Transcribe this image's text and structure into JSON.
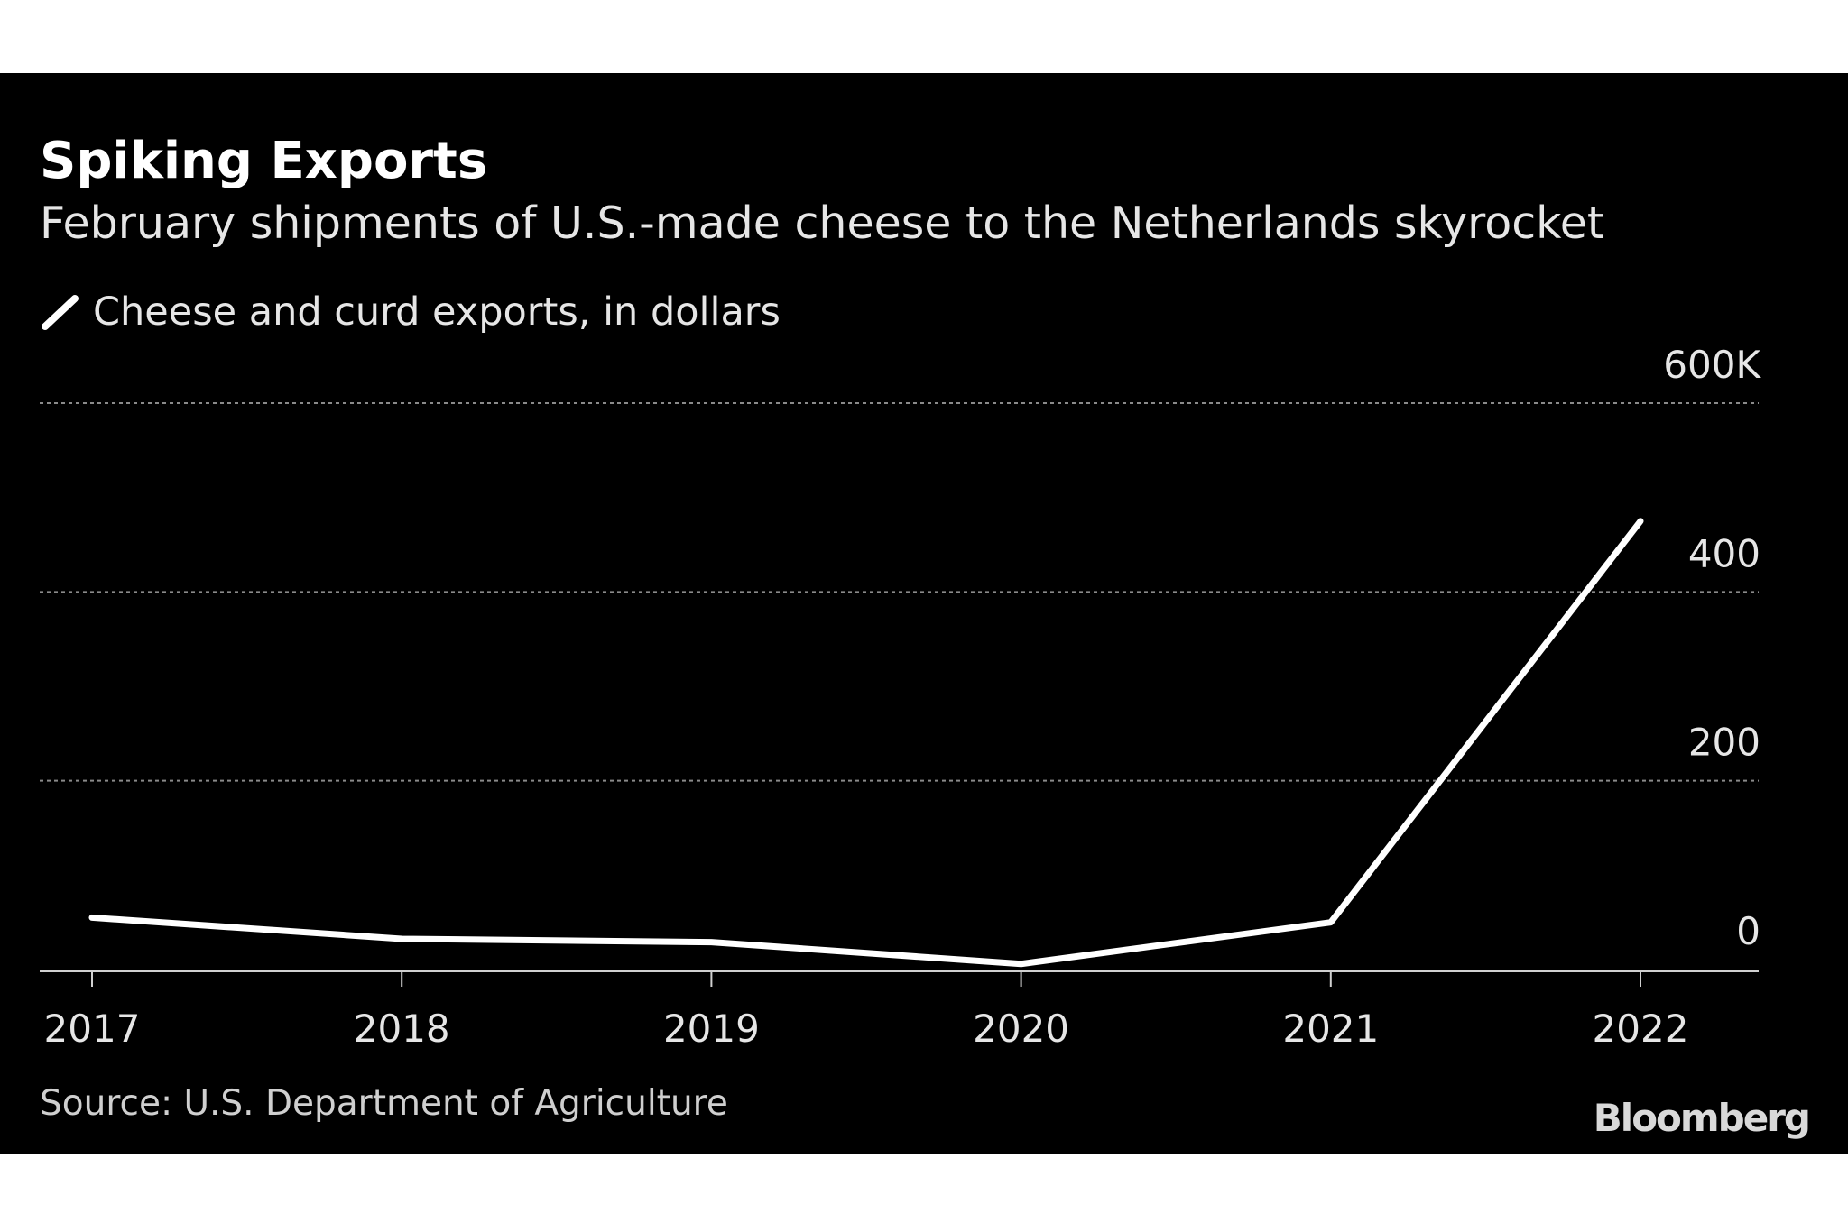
{
  "chart_data": {
    "type": "line",
    "title": "Spiking Exports",
    "subtitle": "February shipments of U.S.-made cheese to the Netherlands skyrocket",
    "source": "Source: U.S. Department of Agriculture",
    "logo": "Bloomberg",
    "categories": [
      "2017",
      "2018",
      "2019",
      "2020",
      "2021",
      "2022"
    ],
    "series": [
      {
        "name": "Cheese and curd exports, in dollars",
        "color": "#ffffff",
        "values": [
          55000,
          32500,
          29000,
          6000,
          50000,
          475000
        ]
      }
    ],
    "ylim": [
      0,
      600000
    ],
    "yticks": [
      0,
      {
        "value": 200000,
        "label": "200"
      },
      {
        "value": 400000,
        "label": "400"
      },
      {
        "value": 600000,
        "label": "600K"
      }
    ],
    "grid": true
  }
}
